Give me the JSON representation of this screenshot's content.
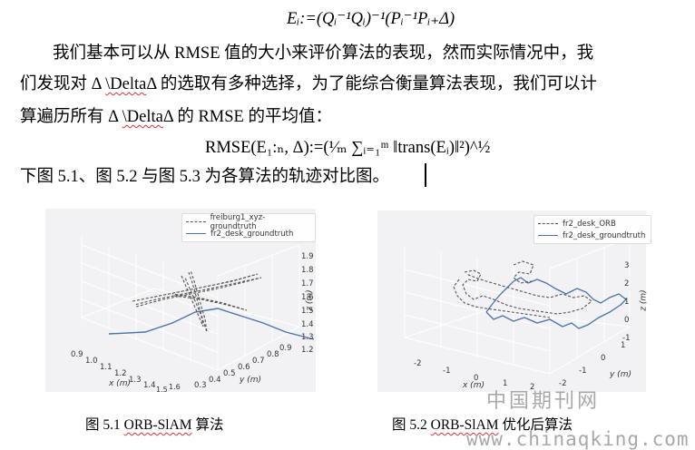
{
  "document": {
    "formula1": "Eᵢ:=(Qᵢ⁻¹Qᵢ)⁻¹(Pᵢ⁻¹Pᵢ₊Δ)",
    "para_line1": "我们基本可以从 RMSE 值的大小来评价算法的表现，然而实际情况中，我",
    "para_line2_a": "们发现对 Δ ",
    "para_line2_delta": "\\Delta",
    "para_line2_b": "Δ 的选取有多种选择，为了能综合衡量算法表现，我们可以计",
    "para_line3_a": "算遍历所有 Δ ",
    "para_line3_delta": "\\Delta",
    "para_line3_b": "Δ 的 RMSE 的平均值：",
    "formula2": "RMSE(E₁:ₙ, Δ):=(¹⁄ₘ ∑ᵢ₌₁ᵐ ‖trans(Eᵢ)‖²)^½",
    "para_line4": "下图 5.1、图 5.2 与图 5.3 为各算法的轨迹对比图。"
  },
  "figures": [
    {
      "legend": [
        "freiburg1_xyz-groundtruth",
        "fr2_desk_groundtruth"
      ],
      "z_ticks": [
        "1.9",
        "1.8",
        "1.7",
        "1.6",
        "1.5",
        "1.4",
        "1.3",
        "1.2"
      ],
      "z_label": "z (m)",
      "x_ticks": [
        "0.9",
        "1.0",
        "1.1",
        "1.2",
        "1.3",
        "1.4",
        "1.5",
        "1.6"
      ],
      "x_label": "x (m)",
      "y_ticks": [
        "0.3",
        "0.4",
        "0.5",
        "0.6",
        "0.7",
        "0.8",
        "0.9"
      ],
      "y_label": "y (m)",
      "caption_a": "图 5.1 ",
      "caption_name": "ORB-SlAM",
      "caption_b": " 算法"
    },
    {
      "legend": [
        "fr2_desk_ORB",
        "fr2_desk_groundtruth"
      ],
      "z_ticks": [
        "3",
        "2",
        "1",
        "0",
        "-1"
      ],
      "z_label": "z (m)",
      "x_ticks": [
        "-2",
        "-1",
        "0",
        "1",
        "2"
      ],
      "x_label": "x (m)",
      "y_ticks": [
        "-2",
        "-1",
        "0",
        "1"
      ],
      "y_label": "y (m)",
      "caption_a": "图 5.2 ",
      "caption_name": "ORB-SlAM",
      "caption_b": " 优化后算法"
    }
  ],
  "watermark": {
    "cn": "中国期刊网",
    "url": "www.chinaqking.com"
  },
  "colors": {
    "groundtruth": "#4c72b0",
    "estimate": "#555555",
    "pane": "#f2f2f4"
  }
}
